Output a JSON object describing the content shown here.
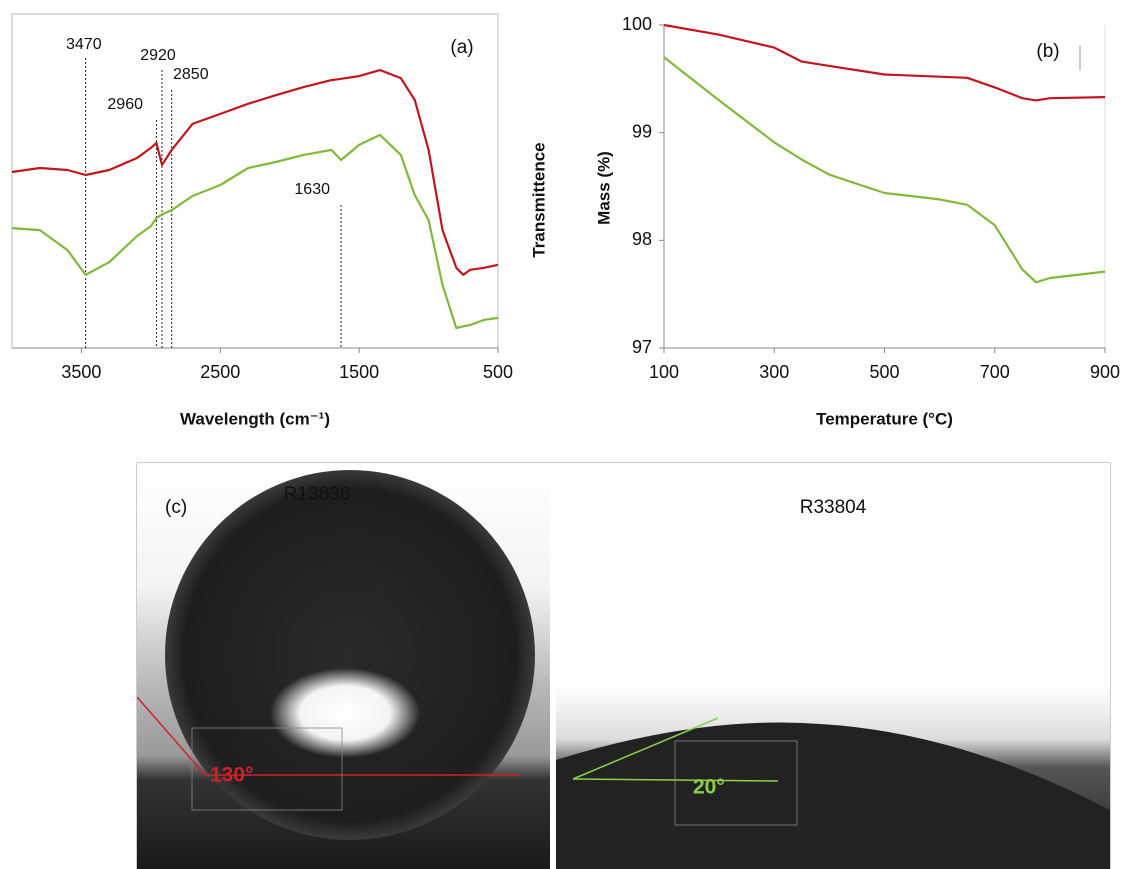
{
  "chart_data": [
    {
      "type": "line",
      "label": "(a)",
      "x_label": "Wavelength (cm⁻¹)",
      "y_label": "Transmittence",
      "xlim": [
        4000,
        500
      ],
      "xticks": [
        3500,
        2500,
        1500,
        500
      ],
      "ylim": [
        0,
        100
      ],
      "markers": [
        3470,
        2960,
        2920,
        2850,
        1630
      ],
      "x": [
        4000,
        3800,
        3600,
        3470,
        3300,
        3100,
        3000,
        2960,
        2920,
        2850,
        2700,
        2500,
        2300,
        2100,
        1900,
        1700,
        1630,
        1500,
        1350,
        1200,
        1100,
        1000,
        900,
        800,
        750,
        700,
        600,
        500
      ],
      "series": [
        {
          "color": "#c0161c",
          "values": [
            52.7,
            53.9,
            53.3,
            51.8,
            53.3,
            56.9,
            59.9,
            61.4,
            54.8,
            59.3,
            67.1,
            70.1,
            73.1,
            75.7,
            78.1,
            80.2,
            80.6,
            81.4,
            83.2,
            80.8,
            74.3,
            59.3,
            35.3,
            24.0,
            21.9,
            23.4,
            24.0,
            24.9
          ]
        },
        {
          "color": "#7fba3a",
          "values": [
            35.9,
            35.3,
            29.3,
            21.9,
            25.7,
            33.5,
            36.5,
            38.9,
            40.0,
            41.3,
            45.5,
            48.8,
            53.9,
            55.7,
            57.8,
            59.3,
            56.3,
            60.8,
            63.8,
            57.8,
            45.8,
            38.3,
            18.9,
            6.0,
            6.5,
            6.9,
            8.4,
            9.0
          ]
        }
      ]
    },
    {
      "type": "line",
      "label": "(b)",
      "x_label": "Temperature (°C)",
      "y_label": "Mass (%)",
      "xlim": [
        100,
        900
      ],
      "xticks": [
        100,
        300,
        500,
        700,
        900
      ],
      "ylim": [
        97,
        100
      ],
      "yticks": [
        97,
        98,
        99,
        100
      ],
      "x": [
        100,
        200,
        300,
        350,
        400,
        500,
        600,
        650,
        700,
        750,
        775,
        800,
        900
      ],
      "series": [
        {
          "color": "#c0161c",
          "values": [
            100,
            99.91,
            99.79,
            99.66,
            99.62,
            99.54,
            99.52,
            99.51,
            99.42,
            99.32,
            99.3,
            99.32,
            99.33
          ]
        },
        {
          "color": "#7fba3a",
          "values": [
            99.7,
            99.3,
            98.91,
            98.75,
            98.61,
            98.44,
            98.38,
            98.33,
            98.14,
            97.73,
            97.61,
            97.65,
            97.71
          ]
        }
      ]
    }
  ],
  "photo": {
    "label": "(c)",
    "samples": [
      {
        "name": "R13836",
        "angle": "130°"
      },
      {
        "name": "R33804",
        "angle": "20°"
      }
    ]
  }
}
